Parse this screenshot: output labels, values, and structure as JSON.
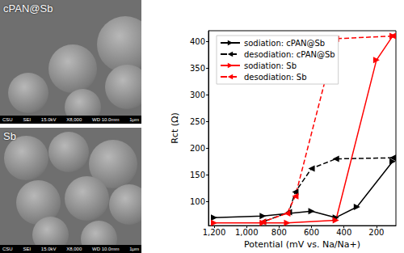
{
  "chart_data": {
    "type": "line",
    "xlabel": "Potential (mV vs. Na/Na+)",
    "ylabel": "Rct (Ω)",
    "xlim": [
      1235,
      80
    ],
    "xticks": [
      1200,
      1000,
      800,
      600,
      400,
      200
    ],
    "ylim": [
      55,
      420
    ],
    "yticks": [
      100,
      150,
      200,
      250,
      300,
      350,
      400
    ],
    "grid": false,
    "legend": "upper left",
    "series": [
      {
        "name": "sodiation: cPAN@Sb",
        "color": "#000000",
        "marker": "triangle-right",
        "line_style": "solid",
        "x": [
          1200,
          900,
          600,
          450,
          320,
          100
        ],
        "values": [
          70,
          73,
          82,
          70,
          90,
          175
        ]
      },
      {
        "name": "desodiation: cPAN@Sb",
        "color": "#000000",
        "marker": "triangle-left",
        "line_style": "dashed",
        "x": [
          100,
          450,
          600,
          700,
          740,
          900
        ],
        "values": [
          182,
          180,
          162,
          118,
          80,
          62
        ]
      },
      {
        "name": "sodiation: Sb",
        "color": "#ff0000",
        "marker": "triangle-right",
        "line_style": "solid",
        "x": [
          1200,
          900,
          750,
          450,
          200,
          100
        ],
        "values": [
          60,
          60,
          60,
          65,
          365,
          410
        ]
      },
      {
        "name": "desodiation: Sb",
        "color": "#ff0000",
        "marker": "triangle-left",
        "line_style": "dashed",
        "x": [
          100,
          450,
          700,
          750,
          900
        ],
        "values": [
          410,
          405,
          110,
          78,
          62
        ]
      }
    ]
  },
  "images": [
    {
      "label": "cPAN@Sb",
      "info": [
        "CSU",
        "SEI",
        "15.0kV",
        "X8,000",
        "WD 10.0mm",
        "1μm"
      ]
    },
    {
      "label": "Sb",
      "info": [
        "CSU",
        "SEI",
        "15.0kV",
        "X8,000",
        "WD 10.0mm",
        "1μm"
      ]
    }
  ]
}
